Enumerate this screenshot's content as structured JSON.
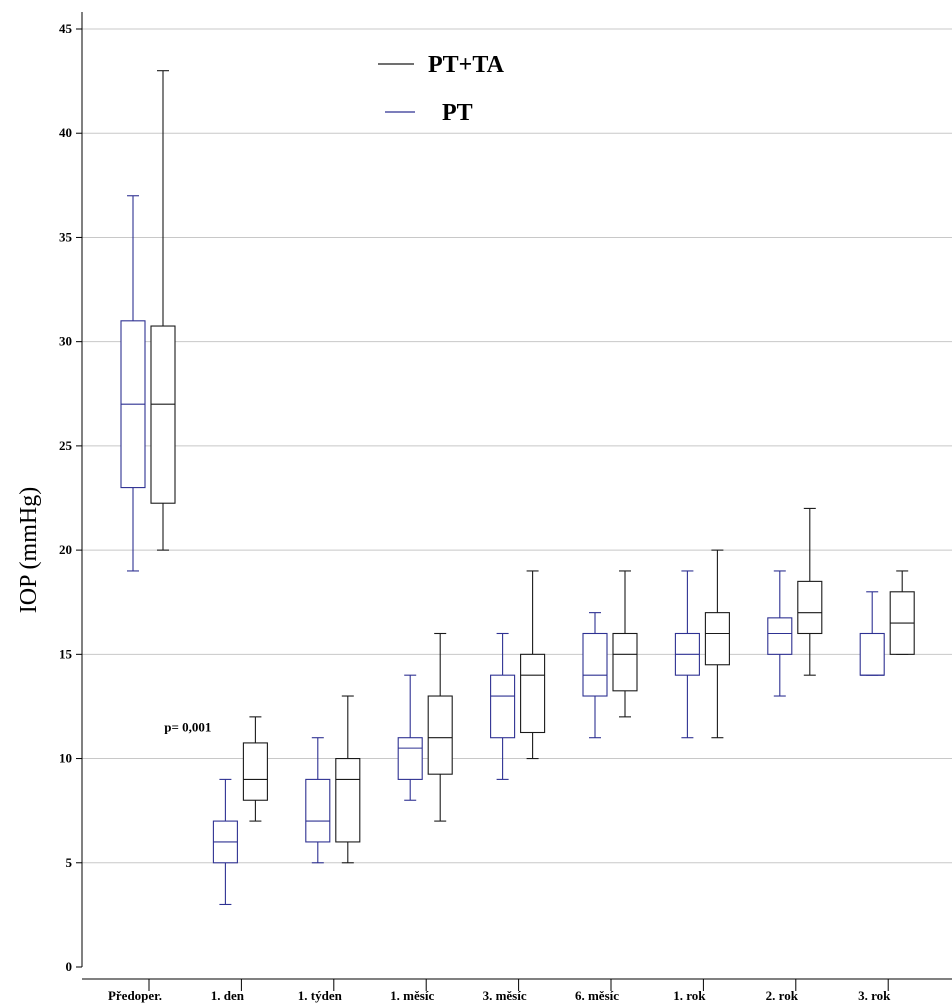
{
  "chart_data": {
    "type": "boxplot",
    "ylabel": "IOP (mmHg)",
    "ylim": [
      0,
      45
    ],
    "yticks": [
      0,
      5,
      10,
      15,
      20,
      25,
      30,
      35,
      40,
      45
    ],
    "grid": true,
    "legend_position": "top-center",
    "categories": [
      "Předoper.",
      "1. den",
      "1. týden",
      "1. měsíc",
      "3. měsíc",
      "6. měsíc",
      "1. rok",
      "2. rok",
      "3. rok"
    ],
    "series": [
      {
        "name": "PT",
        "color": "#2e3192",
        "boxes": [
          {
            "min": 19,
            "q1": 23,
            "median": 27,
            "q3": 31,
            "max": 37
          },
          {
            "min": 3,
            "q1": 5,
            "median": 6,
            "q3": 7,
            "max": 9
          },
          {
            "min": 5,
            "q1": 6,
            "median": 7,
            "q3": 9,
            "max": 11
          },
          {
            "min": 8,
            "q1": 9,
            "median": 10.5,
            "q3": 11,
            "max": 14
          },
          {
            "min": 9,
            "q1": 11,
            "median": 13,
            "q3": 14,
            "max": 16
          },
          {
            "min": 11,
            "q1": 13,
            "median": 14,
            "q3": 16,
            "max": 17
          },
          {
            "min": 11,
            "q1": 14,
            "median": 15,
            "q3": 16,
            "max": 19
          },
          {
            "min": 13,
            "q1": 15,
            "median": 16,
            "q3": 16.75,
            "max": 19
          },
          {
            "min": 14,
            "q1": 14,
            "median": 14,
            "q3": 16,
            "max": 18
          }
        ]
      },
      {
        "name": "PT+TA",
        "color": "#1a1a1a",
        "boxes": [
          {
            "min": 20,
            "q1": 22.25,
            "median": 27,
            "q3": 30.75,
            "max": 43
          },
          {
            "min": 7,
            "q1": 8,
            "median": 9,
            "q3": 10.75,
            "max": 12
          },
          {
            "min": 5,
            "q1": 6,
            "median": 9,
            "q3": 10,
            "max": 13
          },
          {
            "min": 7,
            "q1": 9.25,
            "median": 11,
            "q3": 13,
            "max": 16
          },
          {
            "min": 10,
            "q1": 11.25,
            "median": 14,
            "q3": 15,
            "max": 19
          },
          {
            "min": 12,
            "q1": 13.25,
            "median": 15,
            "q3": 16,
            "max": 19
          },
          {
            "min": 11,
            "q1": 14.5,
            "median": 16,
            "q3": 17,
            "max": 20
          },
          {
            "min": 14,
            "q1": 16,
            "median": 17,
            "q3": 18.5,
            "max": 22
          },
          {
            "min": 15,
            "q1": 15,
            "median": 16.5,
            "q3": 18,
            "max": 19
          }
        ]
      }
    ],
    "legend": [
      {
        "label": "PT+TA",
        "color": "#1a1a1a"
      },
      {
        "label": "PT",
        "color": "#2e3192"
      }
    ],
    "annotations": [
      {
        "text": "p= 0,001",
        "category": "1. den",
        "y": 11.5
      }
    ]
  }
}
